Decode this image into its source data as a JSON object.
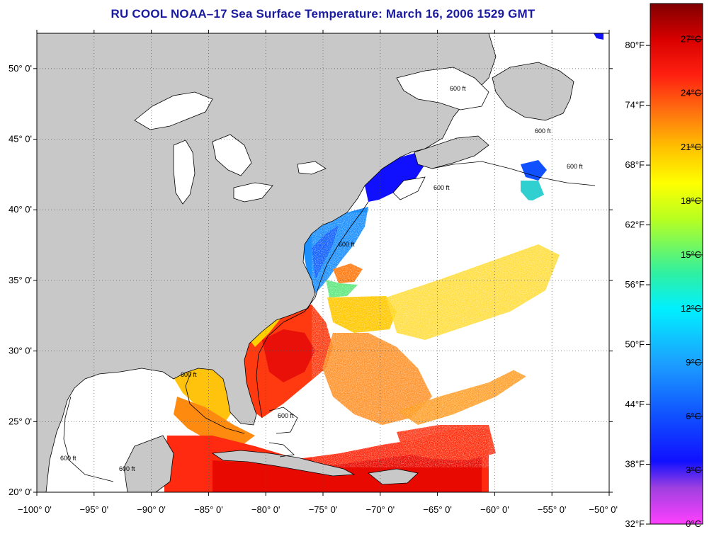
{
  "title": "RU COOL  NOAA–17  Sea Surface Temperature:  March 16, 2006 1529 GMT",
  "map": {
    "lon_range": [
      -100,
      -50
    ],
    "lat_range": [
      20,
      52.5
    ],
    "lat_ticks": [
      {
        "value": 20,
        "label": "20° 0'"
      },
      {
        "value": 25,
        "label": "25° 0'"
      },
      {
        "value": 30,
        "label": "30° 0'"
      },
      {
        "value": 35,
        "label": "35° 0'"
      },
      {
        "value": 40,
        "label": "40° 0'"
      },
      {
        "value": 45,
        "label": "45° 0'"
      },
      {
        "value": 50,
        "label": "50° 0'"
      }
    ],
    "lon_ticks": [
      {
        "value": -100,
        "label": "−100° 0'"
      },
      {
        "value": -95,
        "label": "−95° 0'"
      },
      {
        "value": -90,
        "label": "−90° 0'"
      },
      {
        "value": -85,
        "label": "−85° 0'"
      },
      {
        "value": -80,
        "label": "−80° 0'"
      },
      {
        "value": -75,
        "label": "−75° 0'"
      },
      {
        "value": -70,
        "label": "−70° 0'"
      },
      {
        "value": -65,
        "label": "−65° 0'"
      },
      {
        "value": -60,
        "label": "−60° 0'"
      },
      {
        "value": -55,
        "label": "−55° 0'"
      },
      {
        "value": -50,
        "label": "−50° 0'"
      }
    ],
    "contour_label": "600 ft",
    "land_color": "#c8c8c8",
    "lake_color": "#ffffff",
    "grid": true
  },
  "colorbar": {
    "min_c": 0,
    "max_c": 29,
    "celsius_ticks": [
      {
        "value": 0,
        "label": "0°C"
      },
      {
        "value": 3,
        "label": "3°C"
      },
      {
        "value": 6,
        "label": "6°C"
      },
      {
        "value": 9,
        "label": "9°C"
      },
      {
        "value": 12,
        "label": "12°C"
      },
      {
        "value": 15,
        "label": "15°C"
      },
      {
        "value": 18,
        "label": "18°C"
      },
      {
        "value": 21,
        "label": "21°C"
      },
      {
        "value": 24,
        "label": "24°C"
      },
      {
        "value": 27,
        "label": "27°C"
      }
    ],
    "fahrenheit_ticks": [
      {
        "value": 32,
        "label": "32°F"
      },
      {
        "value": 38,
        "label": "38°F"
      },
      {
        "value": 44,
        "label": "44°F"
      },
      {
        "value": 50,
        "label": "50°F"
      },
      {
        "value": 56,
        "label": "56°F"
      },
      {
        "value": 62,
        "label": "62°F"
      },
      {
        "value": 68,
        "label": "68°F"
      },
      {
        "value": 74,
        "label": "74°F"
      },
      {
        "value": 80,
        "label": "80°F"
      }
    ],
    "stops": [
      {
        "value": 0,
        "color": "#ff40ff"
      },
      {
        "value": 2,
        "color": "#a040e0"
      },
      {
        "value": 3.5,
        "color": "#1010ff"
      },
      {
        "value": 6,
        "color": "#1050ff"
      },
      {
        "value": 9,
        "color": "#1ca0ff"
      },
      {
        "value": 12,
        "color": "#00f0ff"
      },
      {
        "value": 14,
        "color": "#30f0a0"
      },
      {
        "value": 17,
        "color": "#b8ff20"
      },
      {
        "value": 19,
        "color": "#ffff00"
      },
      {
        "value": 21,
        "color": "#ffc000"
      },
      {
        "value": 23,
        "color": "#ff7010"
      },
      {
        "value": 25,
        "color": "#ff2010"
      },
      {
        "value": 27,
        "color": "#d80000"
      },
      {
        "value": 29,
        "color": "#800000"
      }
    ]
  }
}
